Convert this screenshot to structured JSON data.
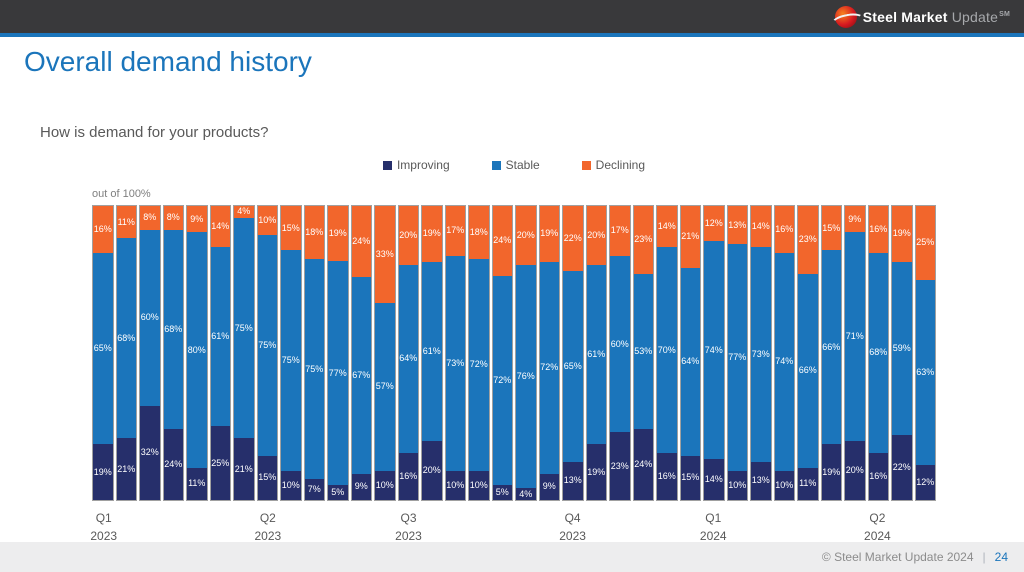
{
  "header": {
    "logo": {
      "brand_bold": "Steel Market",
      "brand_light": "Update",
      "trademark": "SM"
    }
  },
  "title": "Overall demand history",
  "question": "How is demand for your products?",
  "axis_note": "out of 100%",
  "legend": [
    {
      "label": "Improving",
      "color": "#262f6b"
    },
    {
      "label": "Stable",
      "color": "#1b75bb"
    },
    {
      "label": "Declining",
      "color": "#f2662c"
    }
  ],
  "footer": {
    "copyright": "© Steel Market Update 2024",
    "separator": "|",
    "page_number": "24"
  },
  "chart_data": {
    "type": "bar",
    "stacked": true,
    "title": "How is demand for your products?",
    "ylabel": "out of 100%",
    "ylim": [
      0,
      100
    ],
    "legend_position": "top",
    "colors": {
      "improving": "#262f6b",
      "stable": "#1b75bb",
      "declining": "#f2662c"
    },
    "series_order_bottom_to_top": [
      "Improving",
      "Stable",
      "Declining"
    ],
    "bars": [
      {
        "improving": 19,
        "stable": 65,
        "declining": 16
      },
      {
        "improving": 21,
        "stable": 68,
        "declining": 11
      },
      {
        "improving": 32,
        "stable": 60,
        "declining": 8
      },
      {
        "improving": 24,
        "stable": 68,
        "declining": 8
      },
      {
        "improving": 11,
        "stable": 80,
        "declining": 9
      },
      {
        "improving": 25,
        "stable": 61,
        "declining": 14
      },
      {
        "improving": 21,
        "stable": 75,
        "declining": 4
      },
      {
        "improving": 15,
        "stable": 75,
        "declining": 10
      },
      {
        "improving": 10,
        "stable": 75,
        "declining": 15
      },
      {
        "improving": 7,
        "stable": 75,
        "declining": 18
      },
      {
        "improving": 5,
        "stable": 77,
        "declining": 19
      },
      {
        "improving": 9,
        "stable": 67,
        "declining": 24
      },
      {
        "improving": 10,
        "stable": 57,
        "declining": 33
      },
      {
        "improving": 16,
        "stable": 64,
        "declining": 20
      },
      {
        "improving": 20,
        "stable": 61,
        "declining": 19
      },
      {
        "improving": 10,
        "stable": 73,
        "declining": 17
      },
      {
        "improving": 10,
        "stable": 72,
        "declining": 18
      },
      {
        "improving": 5,
        "stable": 72,
        "declining": 24
      },
      {
        "improving": 4,
        "stable": 76,
        "declining": 20
      },
      {
        "improving": 9,
        "stable": 72,
        "declining": 19
      },
      {
        "improving": 13,
        "stable": 65,
        "declining": 22
      },
      {
        "improving": 19,
        "stable": 61,
        "declining": 20
      },
      {
        "improving": 23,
        "stable": 60,
        "declining": 17
      },
      {
        "improving": 24,
        "stable": 53,
        "declining": 23
      },
      {
        "improving": 16,
        "stable": 70,
        "declining": 14
      },
      {
        "improving": 15,
        "stable": 64,
        "declining": 21
      },
      {
        "improving": 14,
        "stable": 74,
        "declining": 12
      },
      {
        "improving": 10,
        "stable": 77,
        "declining": 13
      },
      {
        "improving": 13,
        "stable": 73,
        "declining": 14
      },
      {
        "improving": 10,
        "stable": 74,
        "declining": 16
      },
      {
        "improving": 11,
        "stable": 66,
        "declining": 23
      },
      {
        "improving": 19,
        "stable": 66,
        "declining": 15
      },
      {
        "improving": 20,
        "stable": 71,
        "declining": 9
      },
      {
        "improving": 16,
        "stable": 68,
        "declining": 16
      },
      {
        "improving": 22,
        "stable": 59,
        "declining": 19
      },
      {
        "improving": 12,
        "stable": 63,
        "declining": 25
      }
    ],
    "ticks": [
      {
        "quarter": "Q1",
        "year": "2023",
        "bar_index": 0
      },
      {
        "quarter": "Q2",
        "year": "2023",
        "bar_index": 7
      },
      {
        "quarter": "Q3",
        "year": "2023",
        "bar_index": 13
      },
      {
        "quarter": "Q4",
        "year": "2023",
        "bar_index": 20
      },
      {
        "quarter": "Q1",
        "year": "2024",
        "bar_index": 26
      },
      {
        "quarter": "Q2",
        "year": "2024",
        "bar_index": 33
      }
    ]
  }
}
